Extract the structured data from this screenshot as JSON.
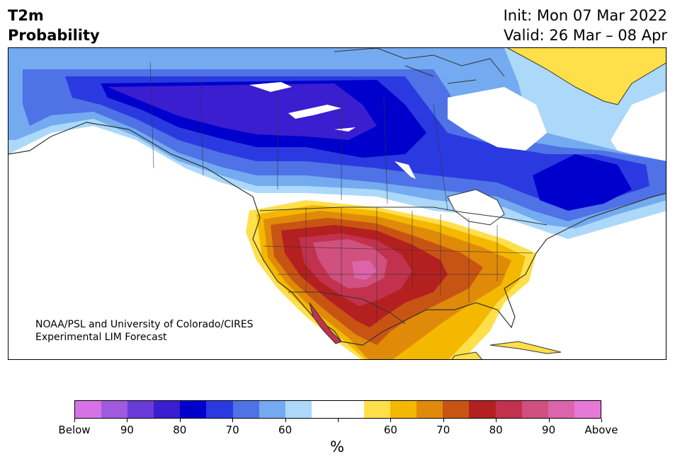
{
  "title": {
    "left_line1": "T2m",
    "left_line2": "Probability",
    "right_line1": "Init: Mon 07 Mar 2022",
    "right_line2": "Valid: 26 Mar – 08 Apr"
  },
  "credit": {
    "line1": "NOAA/PSL and University of Colorado/CIRES",
    "line2": "Experimental LIM Forecast"
  },
  "colorbar": {
    "colors": [
      "#d672e6",
      "#a05ae0",
      "#6a3ad8",
      "#3a1ecf",
      "#0000cc",
      "#2a3ae0",
      "#4f72e6",
      "#74aaf0",
      "#acd8fa",
      "#ffffff",
      "#ffffff",
      "#ffe04a",
      "#f4b800",
      "#e08a0a",
      "#c85414",
      "#b42020",
      "#c2324e",
      "#d0507e",
      "#dc64aa",
      "#e678d8"
    ],
    "tick_labels": [
      "Below",
      "90",
      "80",
      "70",
      "60",
      "",
      "60",
      "70",
      "80",
      "90",
      "Above"
    ],
    "unit": "%"
  },
  "map": {
    "description_colors": {
      "cold_deep": "#3a1ecf",
      "cold_strong": "#0000cc",
      "cold_mid": "#2a3ae0",
      "cold_light": "#4f72e6",
      "cold_pale": "#74aaf0",
      "cold_faint": "#acd8fa",
      "warm_faint": "#ffe04a",
      "warm_light": "#f4b800",
      "warm_mid": "#e08a0a",
      "warm_strong": "#c85414",
      "warm_deep": "#b42020",
      "warm_extreme": "#c2324e",
      "warm_top": "#d0507e",
      "warm_peak": "#dc64aa"
    }
  }
}
